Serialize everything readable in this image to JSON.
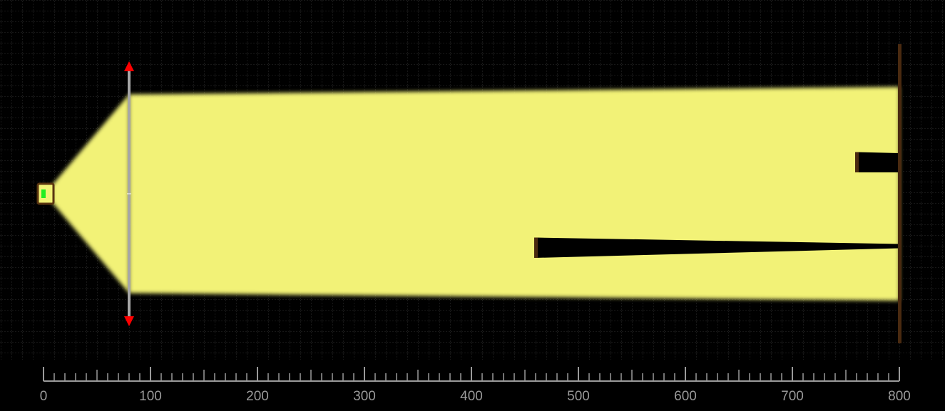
{
  "scene": {
    "background_color": "#000000",
    "grid_color": "#2e2e2e",
    "grid_spacing_units": 10,
    "x_range": [
      0,
      800
    ],
    "y_range": [
      -140,
      140
    ],
    "beam_color": "#f2f277",
    "screen_color": "#4a2a10",
    "lens_color": "#a6a6a6",
    "arrow_color": "#ff0000",
    "source_body_color": "#f2f277",
    "source_outline_color": "#5a3510",
    "source_emitter_color": "#22ee22"
  },
  "source": {
    "x": 0,
    "y": 0,
    "icon": "light-source-icon"
  },
  "lens": {
    "x": 80,
    "half_height": 120,
    "icon": "converging-lens-icon"
  },
  "beam": {
    "collimated_half_width": 93,
    "screen_half_width": 100
  },
  "obstacles": [
    {
      "x_start": 760,
      "x_end": 800,
      "y_top_start": 39,
      "y_top_end": 38,
      "y_bottom_start": 20,
      "y_bottom_end": 20
    },
    {
      "x_start": 460,
      "x_end": 800,
      "y_top_start": -41,
      "y_top_end": -47,
      "y_bottom_start": -60,
      "y_bottom_end": -51
    }
  ],
  "screen": {
    "x": 800,
    "y_top": 140,
    "y_bottom": -140
  },
  "ruler": {
    "min": 0,
    "max": 800,
    "major_step": 100,
    "minor_step": 10,
    "labels": [
      "0",
      "100",
      "200",
      "300",
      "400",
      "500",
      "600",
      "700",
      "800"
    ],
    "color": "#9a9a9a"
  }
}
